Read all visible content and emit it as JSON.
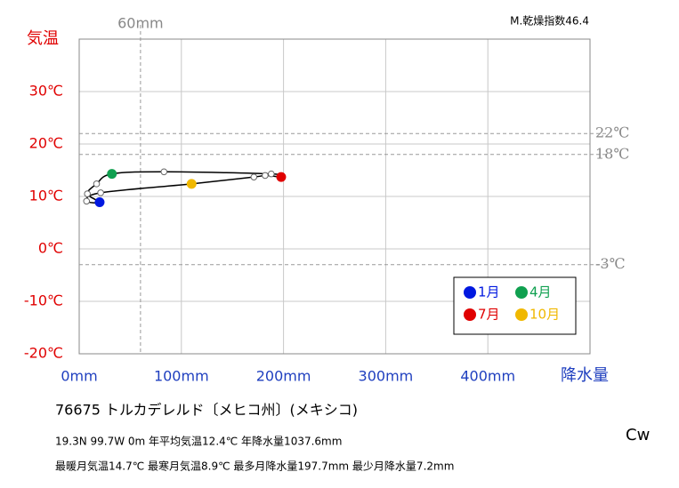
{
  "chart_data": {
    "type": "climograph",
    "title": "気温",
    "x_label": "降水量",
    "index_label": "M.乾燥指数46.4",
    "station": "76675  トルカデレルド〔メヒコ州〕(メキシコ)",
    "info_lines": [
      "19.3N  99.7W 0m  年平均気温12.4℃ 年降水量1037.6mm",
      "最暖月気温14.7℃ 最寒月気温8.9℃ 最多月降水量197.7mm 最少月降水量7.2mm"
    ],
    "climate_class": "Cw",
    "categories": [
      "1月",
      null,
      null,
      "4月",
      null,
      null,
      "7月",
      null,
      null,
      "10月",
      null,
      null
    ],
    "colors": [
      "#0018e0",
      null,
      null,
      "#10a050",
      null,
      null,
      "#e00000",
      null,
      null,
      "#f0b800",
      null,
      null
    ],
    "x": [
      20,
      8,
      17,
      32,
      83,
      188,
      197.7,
      182,
      171,
      110,
      21,
      7.2
    ],
    "values": [
      8.9,
      10.5,
      12.4,
      14.3,
      14.7,
      14.3,
      13.7,
      14.0,
      13.7,
      12.4,
      10.7,
      9.1
    ],
    "xlim": [
      0,
      500
    ],
    "ylim": [
      -20,
      40
    ],
    "xticks": [
      {
        "value": 0,
        "label": "0mm"
      },
      {
        "value": 100,
        "label": "100mm"
      },
      {
        "value": 200,
        "label": "200mm"
      },
      {
        "value": 300,
        "label": "300mm"
      },
      {
        "value": 400,
        "label": "400mm"
      }
    ],
    "yticks": [
      {
        "value": -20,
        "label": "-20℃"
      },
      {
        "value": -10,
        "label": "-10℃"
      },
      {
        "value": 0,
        "label": "0℃"
      },
      {
        "value": 10,
        "label": "10℃"
      },
      {
        "value": 20,
        "label": "20℃"
      },
      {
        "value": 30,
        "label": "30℃"
      }
    ],
    "x_reference": {
      "value": 60,
      "label": "60mm"
    },
    "y_references": [
      {
        "value": 22,
        "label": "22℃"
      },
      {
        "value": 18,
        "label": "18℃"
      },
      {
        "value": -3,
        "label": "-3℃"
      }
    ],
    "grid": true
  }
}
